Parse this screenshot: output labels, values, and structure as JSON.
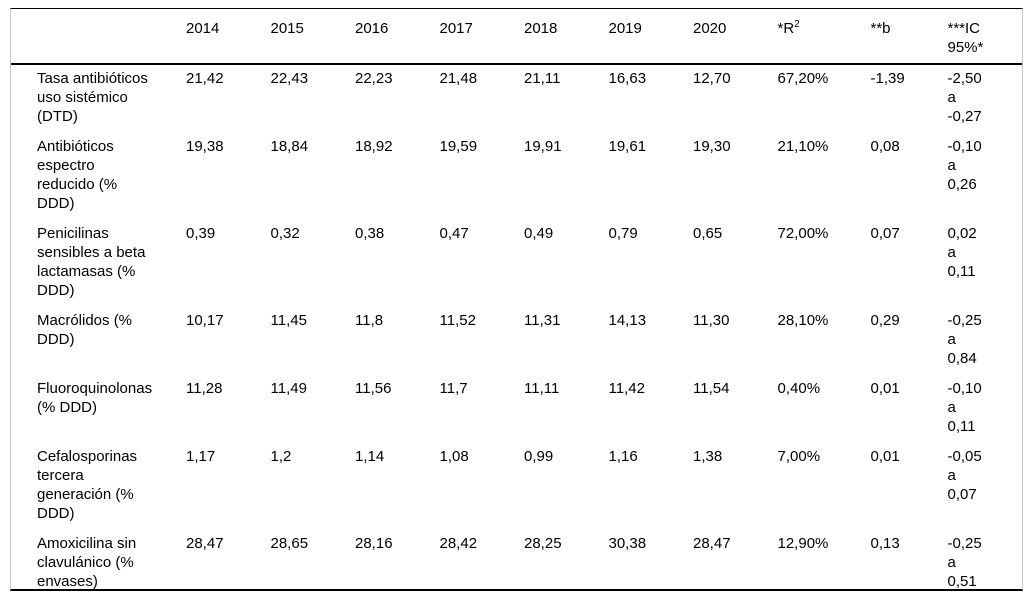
{
  "table": {
    "columns": {
      "row_header": "",
      "years": [
        "2014",
        "2015",
        "2016",
        "2017",
        "2018",
        "2019",
        "2020"
      ],
      "r2_base": "*R",
      "r2_sup": "2",
      "b": "**b",
      "ic": "***IC\n95%*"
    },
    "rows": [
      {
        "label": "Tasa antibióticos\nuso sistémico\n(DTD)",
        "values": [
          "21,42",
          "22,43",
          "22,23",
          "21,48",
          "21,11",
          "16,63",
          "12,70"
        ],
        "r2": "67,20%",
        "b": "-1,39",
        "ic": "-2,50\na\n-0,27"
      },
      {
        "label": "Antibióticos\nespectro\nreducido (%\nDDD)",
        "values": [
          "19,38",
          "18,84",
          "18,92",
          "19,59",
          "19,91",
          "19,61",
          "19,30"
        ],
        "r2": "21,10%",
        "b": "0,08",
        "ic": "-0,10\na\n0,26"
      },
      {
        "label": "Penicilinas\nsensibles a beta\nlactamasas (%\nDDD)",
        "values": [
          "0,39",
          "0,32",
          "0,38",
          "0,47",
          "0,49",
          "0,79",
          "0,65"
        ],
        "r2": "72,00%",
        "b": "0,07",
        "ic": "0,02\na\n0,11"
      },
      {
        "label": "Macrólidos (%\nDDD)",
        "values": [
          "10,17",
          "11,45",
          "11,8",
          "11,52",
          "11,31",
          "14,13",
          "11,30"
        ],
        "r2": "28,10%",
        "b": "0,29",
        "ic": "-0,25\na\n0,84"
      },
      {
        "label": "Fluoroquinolonas\n(% DDD)",
        "values": [
          "11,28",
          "11,49",
          "11,56",
          "11,7",
          "11,11",
          "11,42",
          "11,54"
        ],
        "r2": "0,40%",
        "b": "0,01",
        "ic": "-0,10\na\n0,11"
      },
      {
        "label": "Cefalosporinas\ntercera\ngeneración (%\nDDD)",
        "values": [
          "1,17",
          "1,2",
          "1,14",
          "1,08",
          "0,99",
          "1,16",
          "1,38"
        ],
        "r2": "7,00%",
        "b": "0,01",
        "ic": "-0,05\na\n0,07"
      },
      {
        "label": "Amoxicilina sin\nclavulánico (%\nenvases)",
        "values": [
          "28,47",
          "28,65",
          "28,16",
          "28,42",
          "28,25",
          "30,38",
          "28,47"
        ],
        "r2": "12,90%",
        "b": "0,13",
        "ic": "-0,25\na\n0,51"
      }
    ],
    "colors": {
      "text": "#000000",
      "rule": "#000000",
      "side_border": "#c9c9c9",
      "background": "#ffffff"
    }
  }
}
